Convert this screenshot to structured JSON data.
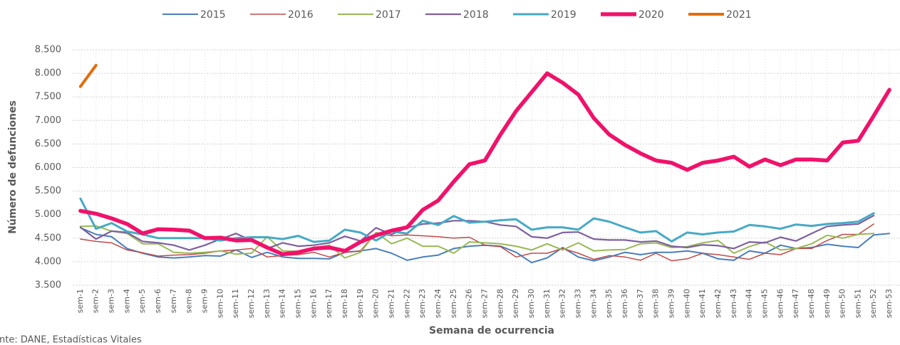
{
  "chart_data": {
    "type": "line",
    "y_label": "Número de defunciones",
    "x_label": "Semana de ocurrencia",
    "source": "Fuente: DANE, Estadísticas Vitales",
    "categories": [
      "sem-1",
      "sem-2",
      "sem-3",
      "sem-4",
      "sem-5",
      "sem-6",
      "sem-7",
      "sem-8",
      "sem-9",
      "sem-10",
      "sem-11",
      "sem-12",
      "sem-13",
      "sem-14",
      "sem-15",
      "sem-16",
      "sem-17",
      "sem-18",
      "sem-19",
      "sem-20",
      "sem-21",
      "sem-22",
      "sem-23",
      "sem-24",
      "sem-25",
      "sem-26",
      "sem-27",
      "sem-28",
      "sem-29",
      "sem-30",
      "sem-31",
      "sem-32",
      "sem-33",
      "sem-34",
      "sem-35",
      "sem-36",
      "sem-37",
      "sem-38",
      "sem-39",
      "sem-40",
      "sem-41",
      "sem-42",
      "sem-43",
      "sem-44",
      "sem-45",
      "sem-46",
      "sem-47",
      "sem-48",
      "sem-49",
      "sem-50",
      "sem-51",
      "sem-52",
      "sem-53"
    ],
    "ylim": [
      3500,
      8500
    ],
    "yticks": [
      {
        "value": 3500,
        "label": "3.500"
      },
      {
        "value": 4000,
        "label": "4.000"
      },
      {
        "value": 4500,
        "label": "4.500"
      },
      {
        "value": 5000,
        "label": "5.000"
      },
      {
        "value": 5500,
        "label": "5.500"
      },
      {
        "value": 6000,
        "label": "6.000"
      },
      {
        "value": 6500,
        "label": "6.500"
      },
      {
        "value": 7000,
        "label": "7.000"
      },
      {
        "value": 7500,
        "label": "7.500"
      },
      {
        "value": 8000,
        "label": "8.000"
      },
      {
        "value": 8500,
        "label": "8.500"
      }
    ],
    "grid": true,
    "series": [
      {
        "name": "2015",
        "color": "#4a7ebb",
        "width": 2,
        "values": [
          4720,
          4580,
          4530,
          4280,
          4180,
          4100,
          4080,
          4100,
          4130,
          4120,
          4250,
          4090,
          4200,
          4100,
          4070,
          4070,
          4060,
          4200,
          4230,
          4280,
          4180,
          4030,
          4100,
          4140,
          4280,
          4330,
          4350,
          4330,
          4200,
          3980,
          4080,
          4300,
          4100,
          4020,
          4100,
          4200,
          4150,
          4200,
          4200,
          4230,
          4180,
          4060,
          4030,
          4230,
          4180,
          4350,
          4280,
          4300,
          4370,
          4330,
          4300,
          4570,
          4600
        ]
      },
      {
        "name": "2016",
        "color": "#be4b48",
        "width": 1.5,
        "values": [
          4480,
          4430,
          4400,
          4250,
          4190,
          4120,
          4140,
          4150,
          4180,
          4230,
          4250,
          4280,
          4100,
          4130,
          4150,
          4200,
          4100,
          4200,
          4230,
          4620,
          4550,
          4570,
          4550,
          4530,
          4500,
          4520,
          4350,
          4320,
          4100,
          4180,
          4180,
          4280,
          4180,
          4050,
          4130,
          4100,
          4030,
          4180,
          4020,
          4060,
          4180,
          4150,
          4100,
          4050,
          4180,
          4150,
          4280,
          4280,
          4450,
          4580,
          4580,
          4800,
          null
        ]
      },
      {
        "name": "2017",
        "color": "#98b954",
        "width": 2,
        "values": [
          4750,
          4760,
          4650,
          4600,
          4380,
          4380,
          4200,
          4180,
          4200,
          4230,
          4160,
          4180,
          4530,
          4230,
          4220,
          4300,
          4350,
          4080,
          4200,
          4620,
          4380,
          4500,
          4330,
          4330,
          4180,
          4420,
          4400,
          4380,
          4330,
          4250,
          4380,
          4250,
          4400,
          4230,
          4250,
          4260,
          4380,
          4400,
          4300,
          4320,
          4400,
          4450,
          4180,
          4320,
          4420,
          4250,
          4280,
          4380,
          4560,
          4500,
          4580,
          4600,
          null
        ]
      },
      {
        "name": "2018",
        "color": "#7d60a0",
        "width": 2.2,
        "values": [
          4730,
          4480,
          4650,
          4620,
          4430,
          4400,
          4350,
          4250,
          4350,
          4480,
          4600,
          4450,
          4280,
          4400,
          4330,
          4350,
          4400,
          4540,
          4440,
          4720,
          4580,
          4720,
          4800,
          4820,
          4870,
          4870,
          4850,
          4780,
          4750,
          4530,
          4500,
          4620,
          4630,
          4480,
          4460,
          4460,
          4420,
          4440,
          4330,
          4300,
          4360,
          4340,
          4280,
          4420,
          4400,
          4520,
          4440,
          4600,
          4750,
          4780,
          4800,
          4980,
          null
        ]
      },
      {
        "name": "2019",
        "color": "#46aac5",
        "width": 3,
        "values": [
          5340,
          4700,
          4820,
          4640,
          4580,
          4500,
          4500,
          4500,
          4500,
          4450,
          4500,
          4520,
          4520,
          4480,
          4550,
          4420,
          4450,
          4680,
          4620,
          4450,
          4640,
          4600,
          4870,
          4780,
          4970,
          4830,
          4850,
          4880,
          4900,
          4680,
          4730,
          4730,
          4680,
          4920,
          4850,
          4730,
          4620,
          4650,
          4430,
          4620,
          4580,
          4620,
          4640,
          4780,
          4750,
          4700,
          4790,
          4760,
          4800,
          4820,
          4850,
          5030,
          null
        ]
      },
      {
        "name": "2020",
        "color": "#f0126a",
        "width": 5.5,
        "values": [
          5080,
          5020,
          4920,
          4800,
          4600,
          4690,
          4680,
          4660,
          4500,
          4510,
          4450,
          4460,
          4300,
          4160,
          4200,
          4280,
          4300,
          4230,
          4420,
          4560,
          4660,
          4730,
          5100,
          5300,
          5700,
          6070,
          6150,
          6700,
          7200,
          7600,
          8000,
          7800,
          7550,
          7050,
          6700,
          6480,
          6300,
          6150,
          6100,
          5950,
          6100,
          6150,
          6230,
          6020,
          6170,
          6050,
          6170,
          6170,
          6150,
          6530,
          6570,
          7100,
          7650
        ]
      },
      {
        "name": "2021",
        "color": "#e46c0a",
        "width": 4,
        "values": [
          7720,
          8170,
          null,
          null,
          null,
          null,
          null,
          null,
          null,
          null,
          null,
          null,
          null,
          null,
          null,
          null,
          null,
          null,
          null,
          null,
          null,
          null,
          null,
          null,
          null,
          null,
          null,
          null,
          null,
          null,
          null,
          null,
          null,
          null,
          null,
          null,
          null,
          null,
          null,
          null,
          null,
          null,
          null,
          null,
          null,
          null,
          null,
          null,
          null,
          null,
          null,
          null,
          null
        ]
      }
    ]
  }
}
